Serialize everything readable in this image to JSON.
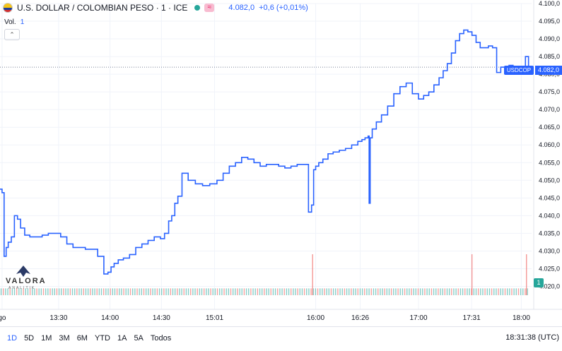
{
  "header": {
    "title": "U.S. DOLLAR / COLOMBIAN PESO · 1 · ICE",
    "price": "4.082,0",
    "change": "+0,6 (+0,01%)",
    "badge": "≈",
    "vol_label": "Vol.",
    "vol_value": "1",
    "collapse_icon": "chevron-up-icon"
  },
  "logo": {
    "name": "VALORA",
    "sub": "ANALITIK"
  },
  "tags": {
    "symbol": "USDCOP",
    "price": "4.082,0",
    "volume": "1"
  },
  "timeframes": [
    {
      "label": "1D",
      "active": true
    },
    {
      "label": "5D",
      "active": false
    },
    {
      "label": "1M",
      "active": false
    },
    {
      "label": "3M",
      "active": false
    },
    {
      "label": "6M",
      "active": false
    },
    {
      "label": "YTD",
      "active": false
    },
    {
      "label": "1A",
      "active": false
    },
    {
      "label": "5A",
      "active": false
    },
    {
      "label": "Todos",
      "active": false
    }
  ],
  "clock": "18:31:38 (UTC)",
  "colors": {
    "line": "#2962ff",
    "vol_up": "#26a69a",
    "vol_down": "#ef5350",
    "grid": "#f0f3fa",
    "axis_text": "#131722"
  },
  "chart_data": {
    "type": "line",
    "symbol": "USDCOP",
    "ylim": [
      4017.5,
      4100
    ],
    "y_ticks": [
      "4.100,0",
      "4.095,0",
      "4.090,0",
      "4.085,0",
      "4.080,0",
      "4.075,0",
      "4.070,0",
      "4.065,0",
      "4.060,0",
      "4.055,0",
      "4.050,0",
      "4.045,0",
      "4.040,0",
      "4.035,0",
      "4.030,0",
      "4.025,0",
      "4.020,0"
    ],
    "y_tick_values": [
      4100,
      4095,
      4090,
      4085,
      4080,
      4075,
      4070,
      4065,
      4060,
      4055,
      4050,
      4045,
      4040,
      4035,
      4030,
      4025,
      4020
    ],
    "x_ticks": [
      {
        "label": "go",
        "t": 12.95
      },
      {
        "label": "13:30",
        "t": 13.5
      },
      {
        "label": "14:00",
        "t": 14.0
      },
      {
        "label": "14:30",
        "t": 14.5
      },
      {
        "label": "15:01",
        "t": 15.0167
      },
      {
        "label": "16:00",
        "t": 16.0
      },
      {
        "label": "16:26",
        "t": 16.4333
      },
      {
        "label": "17:00",
        "t": 17.0
      },
      {
        "label": "17:31",
        "t": 17.5167
      },
      {
        "label": "18:00",
        "t": 18.0
      }
    ],
    "xlim": [
      12.93,
      18.1
    ],
    "x": [
      12.93,
      12.95,
      12.97,
      12.99,
      13.01,
      13.04,
      13.07,
      13.1,
      13.13,
      13.17,
      13.22,
      13.28,
      13.34,
      13.4,
      13.46,
      13.52,
      13.58,
      13.64,
      13.7,
      13.76,
      13.82,
      13.88,
      13.94,
      13.98,
      14.01,
      14.04,
      14.08,
      14.13,
      14.19,
      14.25,
      14.31,
      14.37,
      14.43,
      14.49,
      14.53,
      14.57,
      14.6,
      14.63,
      14.66,
      14.7,
      14.76,
      14.83,
      14.9,
      14.97,
      15.04,
      15.1,
      15.16,
      15.22,
      15.28,
      15.34,
      15.4,
      15.46,
      15.52,
      15.58,
      15.64,
      15.7,
      15.76,
      15.82,
      15.88,
      15.93,
      15.96,
      15.98,
      16.0,
      16.03,
      16.07,
      16.12,
      16.17,
      16.23,
      16.29,
      16.35,
      16.41,
      16.45,
      16.48,
      16.51,
      16.52,
      16.53,
      16.55,
      16.59,
      16.64,
      16.7,
      16.76,
      16.82,
      16.88,
      16.94,
      17.0,
      17.05,
      17.1,
      17.15,
      17.2,
      17.24,
      17.28,
      17.32,
      17.36,
      17.4,
      17.44,
      17.48,
      17.52,
      17.56,
      17.6,
      17.64,
      17.68,
      17.72,
      17.76,
      17.8,
      17.84,
      17.88,
      17.92,
      17.96,
      18.0,
      18.04,
      18.07
    ],
    "values": [
      4047.5,
      4046.5,
      4028.5,
      4031,
      4032.5,
      4034,
      4040,
      4039,
      4036.5,
      4034.5,
      4034,
      4034,
      4034.5,
      4035,
      4035,
      4034,
      4032,
      4031,
      4031,
      4030.5,
      4030.5,
      4028.5,
      4023.5,
      4024,
      4025.5,
      4026.5,
      4027.5,
      4028,
      4029,
      4031,
      4032,
      4033,
      4034,
      4033.5,
      4035,
      4038.5,
      4040,
      4043.5,
      4045.5,
      4052,
      4050,
      4049,
      4048.5,
      4049,
      4050,
      4052,
      4054,
      4055,
      4056.5,
      4056,
      4055,
      4054,
      4054.5,
      4054.5,
      4054,
      4053.5,
      4054,
      4054.5,
      4054.5,
      4041,
      4043,
      4053,
      4054,
      4055,
      4056,
      4057.5,
      4058,
      4058.5,
      4059,
      4060,
      4061,
      4061.5,
      4062,
      4062.5,
      4043.5,
      4062,
      4064.5,
      4066.5,
      4068.5,
      4071,
      4074.5,
      4076.5,
      4077.5,
      4074.5,
      4073,
      4074,
      4075,
      4077,
      4079,
      4081,
      4083,
      4086,
      4089.5,
      4091.5,
      4092.5,
      4092,
      4091,
      4089,
      4087.5,
      4087.5,
      4088,
      4087.5,
      4080.5,
      4082,
      4082,
      4082.5,
      4082,
      4081.5,
      4082,
      4085,
      4082
    ],
    "volume": {
      "count": 237,
      "up_color": "#26a69a",
      "down_color": "#ef5350",
      "spike_times": [
        15.97,
        17.52,
        18.05
      ],
      "spike_values": [
        6,
        6,
        6
      ],
      "base_value": 1
    }
  }
}
